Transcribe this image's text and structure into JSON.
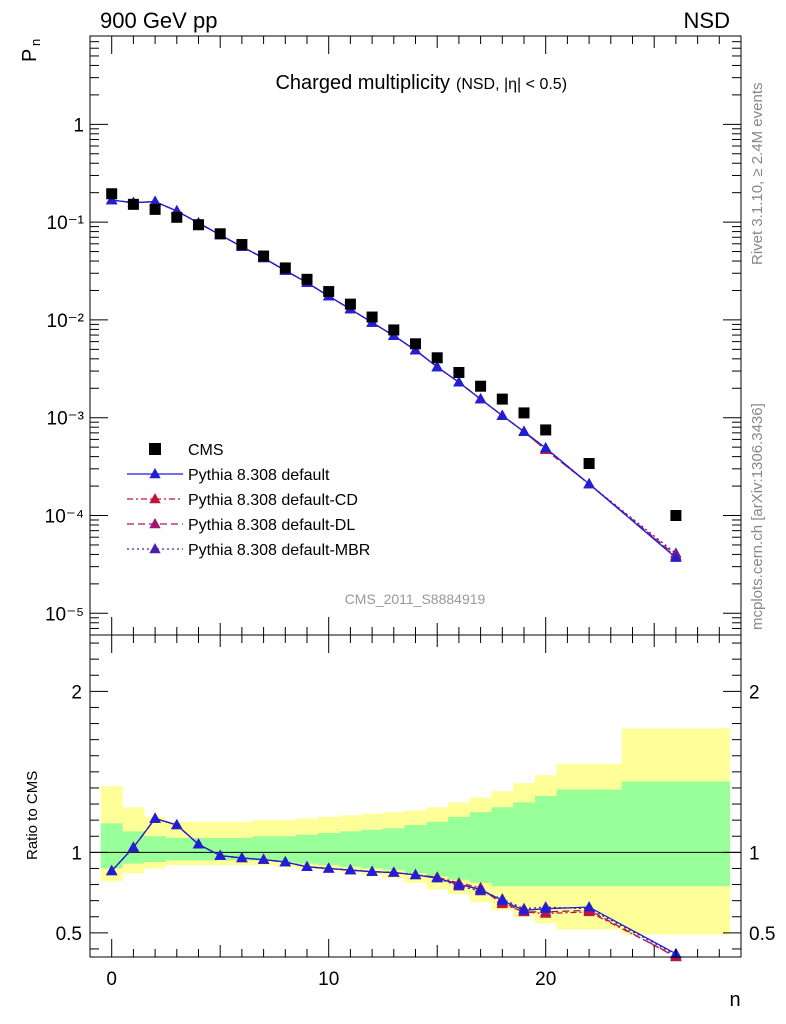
{
  "header": {
    "left": "900 GeV pp",
    "right": "NSD"
  },
  "side_labels": {
    "top": "Rivet 3.1.10, ≥ 2.4M events",
    "bottom": "mcplots.cern.ch [arXiv:1306.3436]"
  },
  "chart_data": [
    {
      "type": "scatter",
      "title": "Charged multiplicity",
      "subtitle": "(NSD, |η| < 0.5)",
      "ylabel_main": "P",
      "ylabel_sub": "n",
      "xlabel": "n",
      "yscale": "log",
      "ylim": [
        6e-06,
        8
      ],
      "xlim": [
        -1,
        29
      ],
      "analysis": "CMS_2011_S8884919",
      "x_ticks": [
        "0",
        "10",
        "20"
      ],
      "y_ticks": [
        "1",
        "10⁻¹",
        "10⁻²",
        "10⁻³",
        "10⁻⁴",
        "10⁻⁵"
      ],
      "legend_placement": "lower-left",
      "x": [
        0,
        1,
        2,
        3,
        4,
        5,
        6,
        7,
        8,
        9,
        10,
        11,
        12,
        13,
        14,
        15,
        16,
        17,
        18,
        19,
        20,
        22,
        26
      ],
      "series": [
        {
          "name": "CMS",
          "color": "#000000",
          "marker": "square",
          "values": [
            0.195,
            0.152,
            0.135,
            0.112,
            0.094,
            0.076,
            0.059,
            0.045,
            0.034,
            0.026,
            0.0195,
            0.0145,
            0.0107,
            0.0079,
            0.0057,
            0.0041,
            0.0029,
            0.0021,
            0.00155,
            0.00112,
            0.00075,
            0.00034,
            0.0001
          ]
        },
        {
          "name": "Pythia 8.308 default",
          "color": "#1f1fd6",
          "marker": "triangle",
          "dash": "",
          "values": [
            0.168,
            0.158,
            0.162,
            0.13,
            0.098,
            0.074,
            0.056,
            0.043,
            0.032,
            0.024,
            0.0175,
            0.0129,
            0.0094,
            0.0069,
            0.0049,
            0.0033,
            0.0023,
            0.00155,
            0.00105,
            0.00072,
            0.00049,
            0.00021,
            3.7e-05
          ]
        },
        {
          "name": "Pythia 8.308 default-CD",
          "color": "#c0143c",
          "marker": "triangle",
          "dash": "6 3 2 3",
          "values": [
            0.168,
            0.158,
            0.162,
            0.13,
            0.098,
            0.074,
            0.056,
            0.043,
            0.032,
            0.024,
            0.0175,
            0.0129,
            0.0094,
            0.0069,
            0.0049,
            0.0033,
            0.0023,
            0.00155,
            0.00105,
            0.00072,
            0.00047,
            0.00021,
            3.8e-05
          ]
        },
        {
          "name": "Pythia 8.308 default-DL",
          "color": "#a0176e",
          "marker": "triangle",
          "dash": "7 4",
          "values": [
            0.168,
            0.158,
            0.162,
            0.13,
            0.098,
            0.074,
            0.056,
            0.043,
            0.032,
            0.024,
            0.0175,
            0.0129,
            0.0094,
            0.0069,
            0.0049,
            0.0033,
            0.0023,
            0.00155,
            0.00105,
            0.00072,
            0.00047,
            0.00021,
            3.9e-05
          ]
        },
        {
          "name": "Pythia 8.308 default-MBR",
          "color": "#4a1fb0",
          "marker": "triangle",
          "dash": "2 3",
          "values": [
            0.168,
            0.158,
            0.162,
            0.13,
            0.098,
            0.074,
            0.056,
            0.043,
            0.032,
            0.024,
            0.0175,
            0.0129,
            0.0094,
            0.0069,
            0.0049,
            0.0033,
            0.0023,
            0.00155,
            0.00105,
            0.00072,
            0.00049,
            0.00021,
            4.1e-05
          ]
        }
      ]
    },
    {
      "type": "line",
      "ylabel": "Ratio to CMS",
      "xlabel": "n",
      "ylim": [
        0.35,
        2.35
      ],
      "xlim": [
        -1,
        29
      ],
      "y_ticks": [
        "0.5",
        "1",
        "2"
      ],
      "x_ticks": [
        "0",
        "10",
        "20"
      ],
      "reference_line": 1.0,
      "bands": {
        "edges": [
          -0.5,
          0.5,
          1.5,
          2.5,
          3.5,
          4.5,
          5.5,
          6.5,
          7.5,
          8.5,
          9.5,
          10.5,
          11.5,
          12.5,
          13.5,
          14.5,
          15.5,
          16.5,
          17.5,
          18.5,
          19.5,
          20.5,
          23.5,
          28.5
        ],
        "outer_color": "#ffff99",
        "inner_color": "#99ff99",
        "outer_up": [
          1.41,
          1.28,
          1.22,
          1.19,
          1.19,
          1.19,
          1.19,
          1.2,
          1.2,
          1.21,
          1.22,
          1.23,
          1.24,
          1.25,
          1.26,
          1.28,
          1.31,
          1.34,
          1.38,
          1.43,
          1.48,
          1.55,
          1.77
        ],
        "outer_down": [
          0.82,
          0.87,
          0.9,
          0.92,
          0.92,
          0.92,
          0.92,
          0.92,
          0.91,
          0.9,
          0.89,
          0.88,
          0.86,
          0.84,
          0.81,
          0.77,
          0.74,
          0.69,
          0.64,
          0.6,
          0.56,
          0.52,
          0.49
        ],
        "inner_up": [
          1.18,
          1.13,
          1.1,
          1.09,
          1.09,
          1.09,
          1.09,
          1.1,
          1.1,
          1.11,
          1.12,
          1.13,
          1.14,
          1.15,
          1.17,
          1.19,
          1.22,
          1.25,
          1.28,
          1.31,
          1.35,
          1.39,
          1.44
        ],
        "inner_down": [
          0.9,
          0.93,
          0.94,
          0.95,
          0.95,
          0.95,
          0.95,
          0.95,
          0.94,
          0.93,
          0.92,
          0.91,
          0.9,
          0.89,
          0.87,
          0.85,
          0.83,
          0.81,
          0.79,
          0.79,
          0.79,
          0.79,
          0.79
        ]
      },
      "x": [
        0,
        1,
        2,
        3,
        4,
        5,
        6,
        7,
        8,
        9,
        10,
        11,
        12,
        13,
        14,
        15,
        16,
        17,
        18,
        19,
        20,
        22,
        26
      ],
      "series": [
        {
          "name": "Pythia 8.308 default",
          "color": "#1f1fd6",
          "dash": "",
          "values": [
            0.885,
            1.03,
            1.21,
            1.17,
            1.05,
            0.98,
            0.965,
            0.955,
            0.94,
            0.91,
            0.9,
            0.89,
            0.88,
            0.875,
            0.86,
            0.84,
            0.8,
            0.77,
            0.7,
            0.64,
            0.65,
            0.66,
            0.37
          ]
        },
        {
          "name": "Pythia 8.308 default-CD",
          "color": "#c0143c",
          "dash": "6 3 2 3",
          "values": [
            0.885,
            1.03,
            1.21,
            1.17,
            1.05,
            0.98,
            0.965,
            0.955,
            0.94,
            0.91,
            0.9,
            0.89,
            0.88,
            0.875,
            0.86,
            0.845,
            0.81,
            0.78,
            0.68,
            0.63,
            0.62,
            0.63,
            0.355
          ]
        },
        {
          "name": "Pythia 8.308 default-DL",
          "color": "#a0176e",
          "dash": "7 4",
          "values": [
            0.885,
            1.03,
            1.21,
            1.17,
            1.05,
            0.98,
            0.965,
            0.955,
            0.94,
            0.91,
            0.9,
            0.89,
            0.88,
            0.875,
            0.86,
            0.845,
            0.8,
            0.77,
            0.69,
            0.63,
            0.63,
            0.64,
            0.35
          ]
        },
        {
          "name": "Pythia 8.308 default-MBR",
          "color": "#4a1fb0",
          "dash": "2 3",
          "values": [
            0.885,
            1.03,
            1.21,
            1.17,
            1.05,
            0.98,
            0.965,
            0.955,
            0.94,
            0.91,
            0.9,
            0.89,
            0.88,
            0.875,
            0.86,
            0.84,
            0.79,
            0.76,
            0.71,
            0.65,
            0.66,
            0.65,
            0.365
          ]
        }
      ]
    }
  ]
}
